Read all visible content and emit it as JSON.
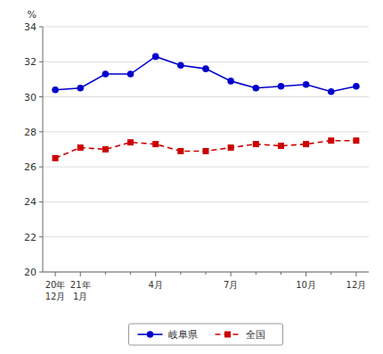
{
  "chart_data": {
    "type": "line",
    "categories": [
      "20年\n12月",
      "21年\n1月",
      null,
      null,
      "4月",
      null,
      null,
      "7月",
      null,
      null,
      "10月",
      null,
      "12月"
    ],
    "series": [
      {
        "name": "岐阜県",
        "color": "#0000cc",
        "marker": "circle",
        "line_style": "solid",
        "values": [
          30.4,
          30.5,
          31.3,
          31.3,
          32.3,
          31.8,
          31.6,
          30.9,
          30.5,
          30.6,
          30.7,
          30.3,
          30.6
        ]
      },
      {
        "name": "全国",
        "color": "#cc0000",
        "marker": "square",
        "line_style": "dashed",
        "values": [
          26.5,
          27.1,
          27.0,
          27.4,
          27.3,
          26.9,
          26.9,
          27.1,
          27.3,
          27.2,
          27.3,
          27.5,
          27.5
        ]
      }
    ],
    "ylim": [
      20,
      34
    ],
    "yticks": [
      20,
      22,
      24,
      26,
      28,
      30,
      32,
      34
    ],
    "ylabel": "%",
    "grid": true,
    "legend": "bottom"
  }
}
